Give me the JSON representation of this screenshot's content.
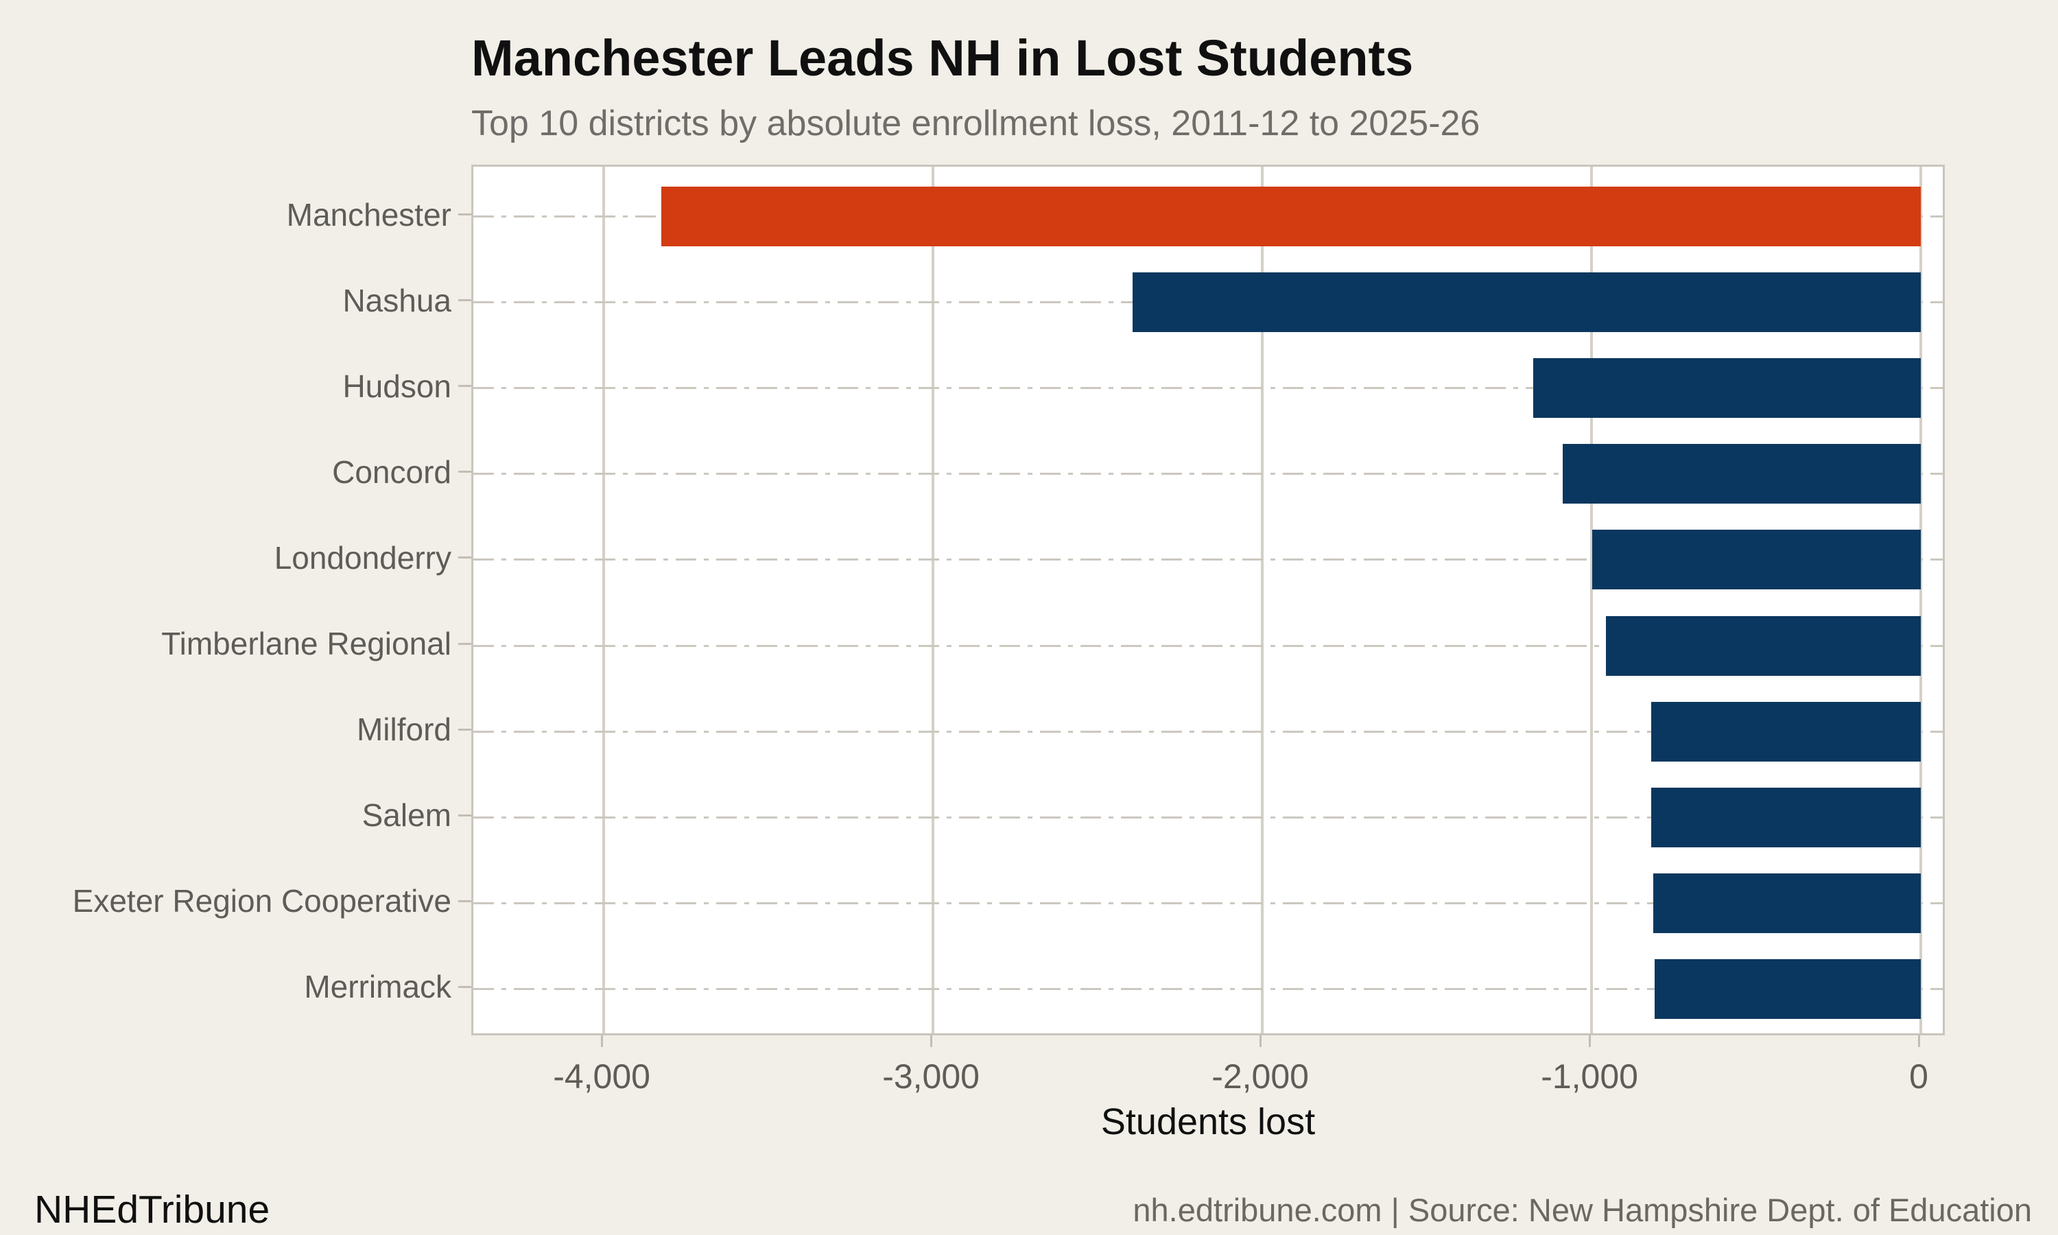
{
  "header": {
    "title": "Manchester Leads NH in Lost Students",
    "subtitle": "Top 10 districts by absolute enrollment loss, 2011-12 to 2025-26"
  },
  "chart_data": {
    "type": "bar",
    "orientation": "horizontal",
    "title": "Manchester Leads NH in Lost Students",
    "subtitle": "Top 10 districts by absolute enrollment loss, 2011-12 to 2025-26",
    "categories": [
      "Manchester",
      "Nashua",
      "Hudson",
      "Concord",
      "Londonderry",
      "Timberlane Regional",
      "Milford",
      "Salem",
      "Exeter Region Cooperative",
      "Merrimack"
    ],
    "values": [
      -3825,
      -2394,
      -1177,
      -1087,
      -998,
      -956,
      -819,
      -818,
      -813,
      -809
    ],
    "xlabel": "Students lost",
    "ylabel": "",
    "x_ticks": [
      -4000,
      -3000,
      -2000,
      -1000,
      0
    ],
    "x_tick_labels": [
      "-4,000",
      "-3,000",
      "-2,000",
      "-1,000",
      "0"
    ],
    "xlim": [
      -4396,
      79
    ],
    "grid": {
      "vertical_gridlines": true,
      "row_guides": "dash-dot",
      "plot_background": "#ffffff"
    },
    "colors": {
      "highlight_bar": "#d23c10",
      "default_bar": "#0a375f",
      "highlight_index": 0,
      "gridline": "#d4d0c7",
      "page_background": "#f2efe8"
    },
    "legend": null
  },
  "footer": {
    "brand": "NHEdTribune",
    "source": "nh.edtribune.com | Source: New Hampshire Dept. of Education"
  }
}
